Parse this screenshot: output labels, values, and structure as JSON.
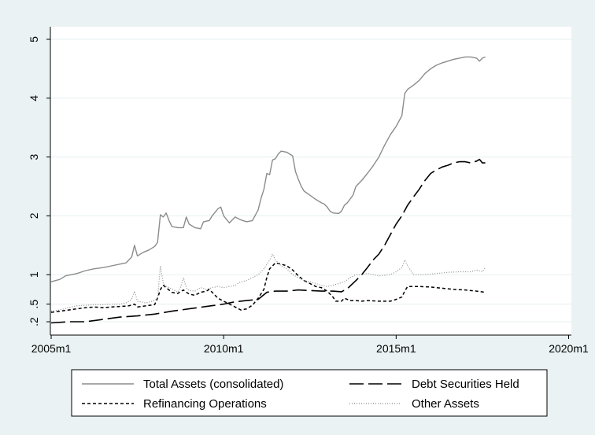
{
  "chart_data": {
    "type": "line",
    "title": "",
    "xlabel": "",
    "ylabel": "",
    "xlim": [
      0,
      180
    ],
    "ylim": [
      0,
      5.1
    ],
    "x_ticks": [
      {
        "label": "2005m1",
        "value": 0
      },
      {
        "label": "2010m1",
        "value": 60
      },
      {
        "label": "2015m1",
        "value": 120
      },
      {
        "label": "2020m1",
        "value": 180
      }
    ],
    "y_ticks": [
      {
        "label": ".2",
        "value": 0.2
      },
      {
        "label": ".5",
        "value": 0.5
      },
      {
        "label": "1",
        "value": 1
      },
      {
        "label": "2",
        "value": 2
      },
      {
        "label": "3",
        "value": 3
      },
      {
        "label": "4",
        "value": 4
      },
      {
        "label": "5",
        "value": 5
      }
    ],
    "grid": true,
    "legend_position": "bottom",
    "colors": {
      "total": "#8c8c8c",
      "debt": "#000000",
      "refi": "#000000",
      "other": "#8c8c8c",
      "grid": "#eaf2f3",
      "plot_bg": "#ffffff",
      "outer_bg": "#eaf2f3"
    },
    "series": [
      {
        "name": "Total Assets (consolidated)",
        "style": "solid",
        "points": [
          [
            0,
            0.88
          ],
          [
            3,
            0.92
          ],
          [
            5,
            0.98
          ],
          [
            9,
            1.02
          ],
          [
            12,
            1.07
          ],
          [
            15,
            1.1
          ],
          [
            18,
            1.12
          ],
          [
            21,
            1.15
          ],
          [
            24,
            1.18
          ],
          [
            26,
            1.2
          ],
          [
            28,
            1.3
          ],
          [
            29,
            1.5
          ],
          [
            30,
            1.32
          ],
          [
            32,
            1.38
          ],
          [
            34,
            1.42
          ],
          [
            36,
            1.48
          ],
          [
            37,
            1.55
          ],
          [
            38,
            2.02
          ],
          [
            39,
            1.98
          ],
          [
            40,
            2.05
          ],
          [
            41,
            1.92
          ],
          [
            42,
            1.82
          ],
          [
            44,
            1.8
          ],
          [
            46,
            1.8
          ],
          [
            47,
            1.98
          ],
          [
            48,
            1.86
          ],
          [
            50,
            1.8
          ],
          [
            52,
            1.78
          ],
          [
            53,
            1.9
          ],
          [
            55,
            1.92
          ],
          [
            56,
            2.0
          ],
          [
            58,
            2.12
          ],
          [
            59,
            2.15
          ],
          [
            60,
            2.0
          ],
          [
            62,
            1.88
          ],
          [
            64,
            1.98
          ],
          [
            66,
            1.93
          ],
          [
            68,
            1.9
          ],
          [
            70,
            1.92
          ],
          [
            72,
            2.1
          ],
          [
            73,
            2.3
          ],
          [
            74,
            2.45
          ],
          [
            75,
            2.72
          ],
          [
            76,
            2.7
          ],
          [
            77,
            2.95
          ],
          [
            78,
            2.97
          ],
          [
            79,
            3.05
          ],
          [
            80,
            3.1
          ],
          [
            82,
            3.08
          ],
          [
            84,
            3.02
          ],
          [
            85,
            2.75
          ],
          [
            86,
            2.62
          ],
          [
            87,
            2.5
          ],
          [
            88,
            2.42
          ],
          [
            90,
            2.35
          ],
          [
            92,
            2.28
          ],
          [
            94,
            2.22
          ],
          [
            95,
            2.2
          ],
          [
            96,
            2.15
          ],
          [
            97,
            2.08
          ],
          [
            98,
            2.05
          ],
          [
            100,
            2.04
          ],
          [
            101,
            2.08
          ],
          [
            102,
            2.18
          ],
          [
            103,
            2.22
          ],
          [
            105,
            2.35
          ],
          [
            106,
            2.5
          ],
          [
            108,
            2.6
          ],
          [
            110,
            2.72
          ],
          [
            112,
            2.85
          ],
          [
            114,
            3.0
          ],
          [
            116,
            3.2
          ],
          [
            118,
            3.38
          ],
          [
            120,
            3.52
          ],
          [
            122,
            3.7
          ],
          [
            123,
            4.08
          ],
          [
            124,
            4.15
          ],
          [
            126,
            4.22
          ],
          [
            128,
            4.3
          ],
          [
            130,
            4.42
          ],
          [
            132,
            4.5
          ],
          [
            134,
            4.56
          ],
          [
            136,
            4.6
          ],
          [
            138,
            4.63
          ],
          [
            140,
            4.66
          ],
          [
            142,
            4.68
          ],
          [
            144,
            4.7
          ],
          [
            146,
            4.7
          ],
          [
            148,
            4.68
          ],
          [
            149,
            4.63
          ],
          [
            150,
            4.68
          ],
          [
            151,
            4.7
          ]
        ]
      },
      {
        "name": "Debt Securities Held",
        "style": "longdash",
        "points": [
          [
            0,
            0.18
          ],
          [
            6,
            0.2
          ],
          [
            12,
            0.2
          ],
          [
            18,
            0.24
          ],
          [
            24,
            0.28
          ],
          [
            30,
            0.3
          ],
          [
            36,
            0.33
          ],
          [
            42,
            0.38
          ],
          [
            48,
            0.42
          ],
          [
            54,
            0.46
          ],
          [
            60,
            0.5
          ],
          [
            64,
            0.54
          ],
          [
            68,
            0.56
          ],
          [
            72,
            0.58
          ],
          [
            75,
            0.7
          ],
          [
            78,
            0.72
          ],
          [
            82,
            0.72
          ],
          [
            86,
            0.74
          ],
          [
            90,
            0.73
          ],
          [
            94,
            0.72
          ],
          [
            98,
            0.72
          ],
          [
            101,
            0.71
          ],
          [
            103,
            0.76
          ],
          [
            106,
            0.9
          ],
          [
            108,
            1.0
          ],
          [
            110,
            1.12
          ],
          [
            112,
            1.25
          ],
          [
            114,
            1.35
          ],
          [
            116,
            1.5
          ],
          [
            118,
            1.68
          ],
          [
            120,
            1.86
          ],
          [
            122,
            2.0
          ],
          [
            124,
            2.18
          ],
          [
            126,
            2.32
          ],
          [
            128,
            2.45
          ],
          [
            130,
            2.6
          ],
          [
            132,
            2.72
          ],
          [
            134,
            2.78
          ],
          [
            136,
            2.83
          ],
          [
            138,
            2.86
          ],
          [
            140,
            2.9
          ],
          [
            142,
            2.92
          ],
          [
            144,
            2.92
          ],
          [
            146,
            2.9
          ],
          [
            148,
            2.93
          ],
          [
            149,
            2.96
          ],
          [
            150,
            2.9
          ],
          [
            151,
            2.9
          ]
        ]
      },
      {
        "name": "Refinancing Operations",
        "style": "shortdash",
        "points": [
          [
            0,
            0.36
          ],
          [
            3,
            0.38
          ],
          [
            6,
            0.4
          ],
          [
            9,
            0.42
          ],
          [
            12,
            0.44
          ],
          [
            15,
            0.45
          ],
          [
            18,
            0.44
          ],
          [
            21,
            0.45
          ],
          [
            24,
            0.46
          ],
          [
            27,
            0.47
          ],
          [
            29,
            0.5
          ],
          [
            30,
            0.45
          ],
          [
            33,
            0.47
          ],
          [
            36,
            0.49
          ],
          [
            37,
            0.6
          ],
          [
            38,
            0.75
          ],
          [
            39,
            0.82
          ],
          [
            40,
            0.78
          ],
          [
            42,
            0.7
          ],
          [
            44,
            0.68
          ],
          [
            46,
            0.74
          ],
          [
            48,
            0.67
          ],
          [
            50,
            0.65
          ],
          [
            52,
            0.7
          ],
          [
            54,
            0.72
          ],
          [
            55,
            0.75
          ],
          [
            56,
            0.7
          ],
          [
            58,
            0.6
          ],
          [
            60,
            0.55
          ],
          [
            62,
            0.5
          ],
          [
            64,
            0.45
          ],
          [
            66,
            0.4
          ],
          [
            68,
            0.42
          ],
          [
            70,
            0.48
          ],
          [
            72,
            0.6
          ],
          [
            74,
            0.75
          ],
          [
            75,
            0.95
          ],
          [
            76,
            1.1
          ],
          [
            77,
            1.15
          ],
          [
            78,
            1.2
          ],
          [
            80,
            1.18
          ],
          [
            82,
            1.15
          ],
          [
            84,
            1.08
          ],
          [
            86,
            0.98
          ],
          [
            88,
            0.9
          ],
          [
            90,
            0.85
          ],
          [
            92,
            0.8
          ],
          [
            94,
            0.78
          ],
          [
            96,
            0.72
          ],
          [
            98,
            0.62
          ],
          [
            99,
            0.55
          ],
          [
            101,
            0.55
          ],
          [
            102,
            0.6
          ],
          [
            104,
            0.56
          ],
          [
            106,
            0.56
          ],
          [
            108,
            0.55
          ],
          [
            110,
            0.56
          ],
          [
            114,
            0.55
          ],
          [
            118,
            0.55
          ],
          [
            120,
            0.58
          ],
          [
            122,
            0.62
          ],
          [
            123,
            0.72
          ],
          [
            124,
            0.8
          ],
          [
            128,
            0.8
          ],
          [
            132,
            0.79
          ],
          [
            136,
            0.77
          ],
          [
            140,
            0.75
          ],
          [
            144,
            0.74
          ],
          [
            148,
            0.72
          ],
          [
            151,
            0.7
          ]
        ]
      },
      {
        "name": "Other Assets",
        "style": "dotted",
        "points": [
          [
            0,
            0.38
          ],
          [
            3,
            0.4
          ],
          [
            6,
            0.44
          ],
          [
            9,
            0.47
          ],
          [
            12,
            0.48
          ],
          [
            15,
            0.49
          ],
          [
            18,
            0.49
          ],
          [
            21,
            0.5
          ],
          [
            24,
            0.5
          ],
          [
            26,
            0.52
          ],
          [
            28,
            0.58
          ],
          [
            29,
            0.72
          ],
          [
            30,
            0.55
          ],
          [
            33,
            0.52
          ],
          [
            36,
            0.56
          ],
          [
            37,
            0.6
          ],
          [
            38,
            1.15
          ],
          [
            39,
            0.85
          ],
          [
            40,
            0.8
          ],
          [
            42,
            0.76
          ],
          [
            44,
            0.7
          ],
          [
            45,
            0.78
          ],
          [
            46,
            0.95
          ],
          [
            47,
            0.78
          ],
          [
            48,
            0.73
          ],
          [
            50,
            0.72
          ],
          [
            52,
            0.78
          ],
          [
            54,
            0.75
          ],
          [
            56,
            0.78
          ],
          [
            58,
            0.8
          ],
          [
            60,
            0.78
          ],
          [
            62,
            0.8
          ],
          [
            64,
            0.82
          ],
          [
            66,
            0.88
          ],
          [
            68,
            0.9
          ],
          [
            70,
            0.95
          ],
          [
            72,
            1.0
          ],
          [
            74,
            1.1
          ],
          [
            76,
            1.25
          ],
          [
            77,
            1.35
          ],
          [
            78,
            1.25
          ],
          [
            80,
            1.15
          ],
          [
            82,
            1.1
          ],
          [
            84,
            1.0
          ],
          [
            86,
            0.95
          ],
          [
            88,
            0.9
          ],
          [
            90,
            0.88
          ],
          [
            92,
            0.85
          ],
          [
            94,
            0.82
          ],
          [
            96,
            0.8
          ],
          [
            98,
            0.82
          ],
          [
            100,
            0.85
          ],
          [
            102,
            0.88
          ],
          [
            104,
            0.95
          ],
          [
            106,
            1.0
          ],
          [
            108,
            1.0
          ],
          [
            110,
            1.02
          ],
          [
            114,
            0.98
          ],
          [
            118,
            1.0
          ],
          [
            120,
            1.05
          ],
          [
            122,
            1.12
          ],
          [
            123,
            1.25
          ],
          [
            124,
            1.15
          ],
          [
            126,
            1.0
          ],
          [
            130,
            1.0
          ],
          [
            134,
            1.02
          ],
          [
            138,
            1.04
          ],
          [
            142,
            1.05
          ],
          [
            146,
            1.05
          ],
          [
            148,
            1.08
          ],
          [
            150,
            1.05
          ],
          [
            151,
            1.12
          ]
        ]
      }
    ]
  }
}
